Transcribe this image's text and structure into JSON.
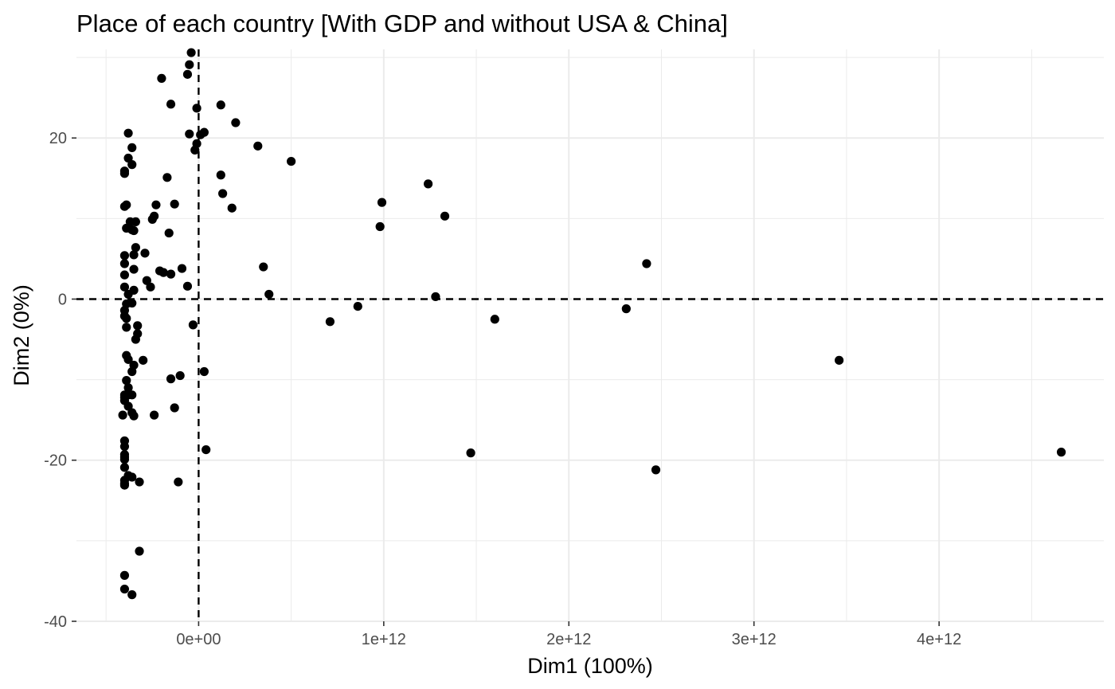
{
  "chart_data": {
    "type": "scatter",
    "title": "Place of each country [With GDP and without USA & China]",
    "xlabel": "Dim1 (100%)",
    "ylabel": "Dim2 (0%)",
    "xlim": [
      -660000000000,
      4890000000000
    ],
    "ylim": [
      -40,
      31
    ],
    "x_ticks": [
      0,
      1000000000000,
      2000000000000,
      3000000000000,
      4000000000000
    ],
    "x_tick_labels": [
      "0e+00",
      "1e+12",
      "2e+12",
      "3e+12",
      "4e+12"
    ],
    "y_ticks": [
      -40,
      -20,
      0,
      20
    ],
    "y_tick_labels": [
      "-40",
      "-20",
      "0",
      "20"
    ],
    "grid": true,
    "legend": "none",
    "reference_lines": {
      "x": 0,
      "y": 0
    },
    "point_color": "#000000",
    "points": [
      [
        -40000000000.0,
        30.6
      ],
      [
        -50000000000.0,
        29.1
      ],
      [
        -60000000000.0,
        27.9
      ],
      [
        -200000000000.0,
        27.4
      ],
      [
        -150000000000.0,
        24.2
      ],
      [
        120000000000.0,
        24.1
      ],
      [
        -10000000000.0,
        23.7
      ],
      [
        200000000000.0,
        21.9
      ],
      [
        -380000000000.0,
        20.6
      ],
      [
        30000000000.0,
        20.7
      ],
      [
        10000000000.0,
        20.4
      ],
      [
        -50000000000.0,
        20.5
      ],
      [
        -10000000000.0,
        19.3
      ],
      [
        -20000000000.0,
        18.5
      ],
      [
        -360000000000.0,
        18.8
      ],
      [
        320000000000.0,
        19.0
      ],
      [
        -380000000000.0,
        17.5
      ],
      [
        -360000000000.0,
        16.7
      ],
      [
        500000000000.0,
        17.1
      ],
      [
        -400000000000.0,
        15.9
      ],
      [
        -400000000000.0,
        15.6
      ],
      [
        -170000000000.0,
        15.1
      ],
      [
        120000000000.0,
        15.4
      ],
      [
        1240000000000.0,
        14.3
      ],
      [
        130000000000.0,
        13.1
      ],
      [
        -390000000000.0,
        11.7
      ],
      [
        -400000000000.0,
        11.5
      ],
      [
        -230000000000.0,
        11.7
      ],
      [
        -130000000000.0,
        11.8
      ],
      [
        180000000000.0,
        11.3
      ],
      [
        990000000000.0,
        12.0
      ],
      [
        -240000000000.0,
        10.3
      ],
      [
        -250000000000.0,
        9.9
      ],
      [
        1330000000000.0,
        10.3
      ],
      [
        -370000000000.0,
        9.6
      ],
      [
        -340000000000.0,
        9.6
      ],
      [
        -390000000000.0,
        8.8
      ],
      [
        -360000000000.0,
        8.6
      ],
      [
        -350000000000.0,
        8.5
      ],
      [
        -160000000000.0,
        8.2
      ],
      [
        980000000000.0,
        9.0
      ],
      [
        -340000000000.0,
        6.4
      ],
      [
        -290000000000.0,
        5.7
      ],
      [
        -400000000000.0,
        5.4
      ],
      [
        -350000000000.0,
        5.5
      ],
      [
        -400000000000.0,
        4.4
      ],
      [
        -350000000000.0,
        3.7
      ],
      [
        -210000000000.0,
        3.5
      ],
      [
        -90000000000.0,
        3.8
      ],
      [
        350000000000.0,
        4.0
      ],
      [
        2420000000000.0,
        4.4
      ],
      [
        -190000000000.0,
        3.3
      ],
      [
        -150000000000.0,
        3.1
      ],
      [
        -400000000000.0,
        3.0
      ],
      [
        -280000000000.0,
        2.3
      ],
      [
        -260000000000.0,
        1.5
      ],
      [
        -60000000000.0,
        1.6
      ],
      [
        -400000000000.0,
        1.5
      ],
      [
        -350000000000.0,
        1.1
      ],
      [
        -380000000000.0,
        0.6
      ],
      [
        380000000000.0,
        0.6
      ],
      [
        1280000000000.0,
        0.3
      ],
      [
        -360000000000.0,
        -0.5
      ],
      [
        -390000000000.0,
        -0.6
      ],
      [
        -400000000000.0,
        -1.4
      ],
      [
        -400000000000.0,
        -2.1
      ],
      [
        -390000000000.0,
        -2.4
      ],
      [
        860000000000.0,
        -0.9
      ],
      [
        2310000000000.0,
        -1.2
      ],
      [
        -30000000000.0,
        -3.2
      ],
      [
        1600000000000.0,
        -2.5
      ],
      [
        710000000000.0,
        -2.8
      ],
      [
        -330000000000.0,
        -3.3
      ],
      [
        -390000000000.0,
        -3.5
      ],
      [
        -330000000000.0,
        -4.3
      ],
      [
        -340000000000.0,
        -5.0
      ],
      [
        -390000000000.0,
        -7.0
      ],
      [
        -380000000000.0,
        -7.5
      ],
      [
        -300000000000.0,
        -7.6
      ],
      [
        -350000000000.0,
        -8.2
      ],
      [
        -360000000000.0,
        -9.0
      ],
      [
        30000000000.0,
        -9.0
      ],
      [
        3460000000000.0,
        -7.6
      ],
      [
        -100000000000.0,
        -9.5
      ],
      [
        -390000000000.0,
        -10.1
      ],
      [
        -150000000000.0,
        -9.9
      ],
      [
        -380000000000.0,
        -11.0
      ],
      [
        -400000000000.0,
        -11.9
      ],
      [
        -380000000000.0,
        -11.9
      ],
      [
        -360000000000.0,
        -11.9
      ],
      [
        -400000000000.0,
        -12.2
      ],
      [
        -400000000000.0,
        -12.6
      ],
      [
        -130000000000.0,
        -13.5
      ],
      [
        -380000000000.0,
        -13.3
      ],
      [
        -360000000000.0,
        -14.1
      ],
      [
        -410000000000.0,
        -14.4
      ],
      [
        -240000000000.0,
        -14.4
      ],
      [
        -350000000000.0,
        -14.5
      ],
      [
        -400000000000.0,
        -17.6
      ],
      [
        -400000000000.0,
        -18.3
      ],
      [
        40000000000.0,
        -18.7
      ],
      [
        -400000000000.0,
        -19.3
      ],
      [
        -400000000000.0,
        -19.6
      ],
      [
        -400000000000.0,
        -19.9
      ],
      [
        1470000000000.0,
        -19.1
      ],
      [
        4660000000000.0,
        -19.0
      ],
      [
        -400000000000.0,
        -20.9
      ],
      [
        2470000000000.0,
        -21.2
      ],
      [
        -380000000000.0,
        -21.9
      ],
      [
        -360000000000.0,
        -22.1
      ],
      [
        -400000000000.0,
        -22.5
      ],
      [
        -400000000000.0,
        -22.9
      ],
      [
        -320000000000.0,
        -22.7
      ],
      [
        -110000000000.0,
        -22.7
      ],
      [
        -400000000000.0,
        -23.1
      ],
      [
        -320000000000.0,
        -31.3
      ],
      [
        -400000000000.0,
        -34.3
      ],
      [
        -400000000000.0,
        -36.0
      ],
      [
        -360000000000.0,
        -36.7
      ]
    ]
  }
}
